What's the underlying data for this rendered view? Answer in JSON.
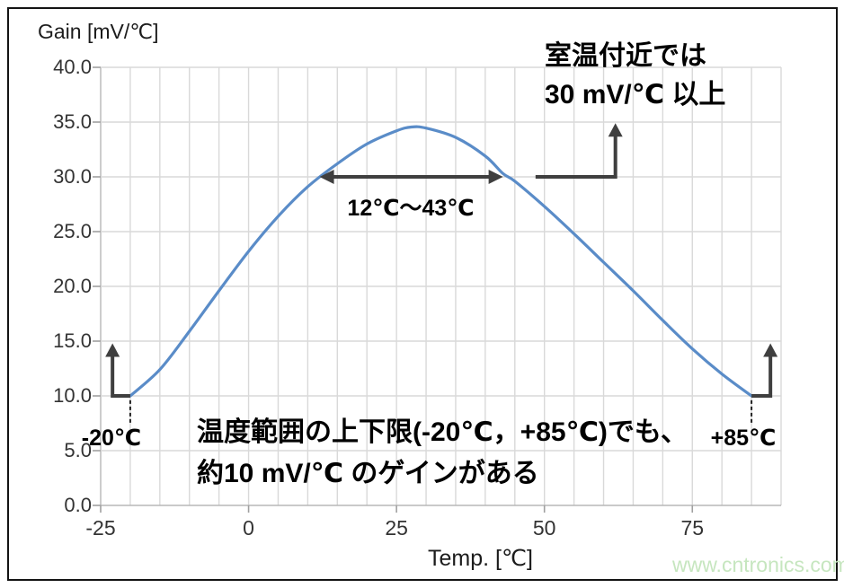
{
  "page": {
    "watermark": "www.cntronics.com"
  },
  "chart_data": {
    "type": "line",
    "title": "Gain [mV/℃]",
    "xlabel": "Temp. [℃]",
    "ylabel": "Gain [mV/℃]",
    "xlim": [
      -25,
      90
    ],
    "ylim": [
      0,
      40
    ],
    "grid": true,
    "grid_step_x": 5,
    "grid_step_y": 5,
    "x_ticks": [
      {
        "value": -25,
        "label": "-25"
      },
      {
        "value": 0,
        "label": "0"
      },
      {
        "value": 25,
        "label": "25"
      },
      {
        "value": 50,
        "label": "50"
      },
      {
        "value": 75,
        "label": "75"
      }
    ],
    "y_ticks": [
      {
        "value": 40,
        "label": "40.0"
      },
      {
        "value": 35,
        "label": "35.0"
      },
      {
        "value": 30,
        "label": "30.0"
      },
      {
        "value": 25,
        "label": "25.0"
      },
      {
        "value": 20,
        "label": "20.0"
      },
      {
        "value": 15,
        "label": "15.0"
      },
      {
        "value": 10,
        "label": "10.0"
      },
      {
        "value": 5,
        "label": "5.0"
      },
      {
        "value": 0,
        "label": "0.0"
      }
    ],
    "series": [
      {
        "color": "#5a8cc8",
        "points": [
          [
            -20,
            10.0
          ],
          [
            -15,
            12.4
          ],
          [
            -10,
            15.9
          ],
          [
            -5,
            19.6
          ],
          [
            0,
            23.2
          ],
          [
            5,
            26.4
          ],
          [
            10,
            29.1
          ],
          [
            15,
            31.2
          ],
          [
            20,
            33.0
          ],
          [
            25,
            34.2
          ],
          [
            27.5,
            34.55
          ],
          [
            30,
            34.45
          ],
          [
            35,
            33.6
          ],
          [
            40,
            31.9
          ],
          [
            43,
            30.3
          ],
          [
            45,
            29.6
          ],
          [
            50,
            27.3
          ],
          [
            55,
            24.8
          ],
          [
            60,
            22.2
          ],
          [
            65,
            19.6
          ],
          [
            70,
            16.9
          ],
          [
            75,
            14.3
          ],
          [
            80,
            12.0
          ],
          [
            85,
            10.0
          ]
        ]
      }
    ],
    "annotations": {
      "room_temp_note": {
        "lines": [
          "室温付近では",
          "30 mV/℃ 以上"
        ]
      },
      "range_arrow": {
        "label": "12℃～43℃",
        "x_from": 12,
        "x_to": 43,
        "y": 30
      },
      "elbow_arrow": {
        "y": 30,
        "from_x": 48.5,
        "bend_x": 62,
        "tip_gain": 34.9
      },
      "end_arrows": [
        {
          "foot_x": -20,
          "bar_x": -23,
          "gain": 10,
          "tip_gain": 14.8
        },
        {
          "foot_x": 85,
          "bar_x": 88.2,
          "gain": 10,
          "tip_gain": 14.8
        }
      ],
      "leader_lines": [
        {
          "x": -20,
          "from_gain": 9.6,
          "to_gain": 7.5
        },
        {
          "x": 85,
          "from_gain": 9.6,
          "to_gain": 7.5
        }
      ],
      "low_end_label": "-20℃",
      "high_end_label": "+85℃",
      "bottom_note": {
        "lines": [
          "温度範囲の上下限(-20℃，+85℃)でも、",
          "約10 mV/℃ のゲインがある"
        ]
      }
    },
    "colors": {
      "grid": "#d9d9d9",
      "axis": "#b7b7b7",
      "tick_mark": "#a0a0a0",
      "annotation_arrow": "#3f3f3f",
      "leader_dash": "#222222",
      "curve": "#5a8cc8"
    }
  }
}
